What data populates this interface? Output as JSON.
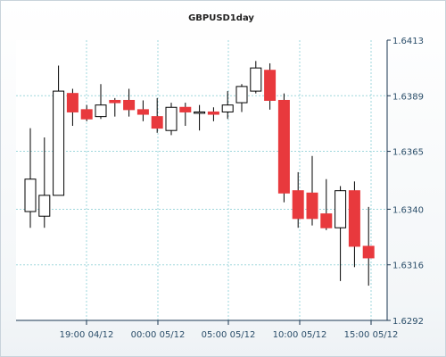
{
  "chart_data": {
    "type": "candlestick",
    "title": "GBPUSD1day",
    "ylim": [
      1.6292,
      1.6413
    ],
    "y_ticks": [
      "1.6413",
      "1.6389",
      "1.6365",
      "1.6340",
      "1.6316",
      "1.6292"
    ],
    "x_ticks": [
      "19:00 04/12",
      "00:00 05/12",
      "05:00 05/12",
      "10:00 05/12",
      "15:00 05/12"
    ],
    "grid": true,
    "colors": {
      "up": "#ffffff",
      "down": "#e8393d",
      "outline": "#000000",
      "grid": "#9fd7dc",
      "axis": "#1a3550"
    },
    "candles": [
      {
        "open": 1.6339,
        "high": 1.6375,
        "low": 1.6332,
        "close": 1.6353
      },
      {
        "open": 1.6337,
        "high": 1.6371,
        "low": 1.6332,
        "close": 1.6346
      },
      {
        "open": 1.6346,
        "high": 1.6402,
        "low": 1.6346,
        "close": 1.6391
      },
      {
        "open": 1.639,
        "high": 1.6392,
        "low": 1.6376,
        "close": 1.6382
      },
      {
        "open": 1.6383,
        "high": 1.6385,
        "low": 1.6378,
        "close": 1.6379
      },
      {
        "open": 1.638,
        "high": 1.6394,
        "low": 1.6379,
        "close": 1.6385
      },
      {
        "open": 1.6387,
        "high": 1.6388,
        "low": 1.638,
        "close": 1.6386
      },
      {
        "open": 1.6387,
        "high": 1.6392,
        "low": 1.638,
        "close": 1.6383
      },
      {
        "open": 1.6383,
        "high": 1.6387,
        "low": 1.6378,
        "close": 1.6381
      },
      {
        "open": 1.638,
        "high": 1.6388,
        "low": 1.6373,
        "close": 1.6375
      },
      {
        "open": 1.6374,
        "high": 1.6386,
        "low": 1.6372,
        "close": 1.6384
      },
      {
        "open": 1.6384,
        "high": 1.6386,
        "low": 1.6376,
        "close": 1.6382
      },
      {
        "open": 1.6382,
        "high": 1.6385,
        "low": 1.6374,
        "close": 1.6382
      },
      {
        "open": 1.6382,
        "high": 1.6384,
        "low": 1.6378,
        "close": 1.6381
      },
      {
        "open": 1.6382,
        "high": 1.6391,
        "low": 1.6379,
        "close": 1.6385
      },
      {
        "open": 1.6386,
        "high": 1.6394,
        "low": 1.6382,
        "close": 1.6393
      },
      {
        "open": 1.6391,
        "high": 1.6404,
        "low": 1.639,
        "close": 1.6401
      },
      {
        "open": 1.64,
        "high": 1.6403,
        "low": 1.6383,
        "close": 1.6387
      },
      {
        "open": 1.6387,
        "high": 1.639,
        "low": 1.6343,
        "close": 1.6347
      },
      {
        "open": 1.6348,
        "high": 1.6356,
        "low": 1.6332,
        "close": 1.6336
      },
      {
        "open": 1.6347,
        "high": 1.6363,
        "low": 1.6333,
        "close": 1.6336
      },
      {
        "open": 1.6338,
        "high": 1.6353,
        "low": 1.6331,
        "close": 1.6332
      },
      {
        "open": 1.6332,
        "high": 1.635,
        "low": 1.6309,
        "close": 1.6348
      },
      {
        "open": 1.6348,
        "high": 1.6352,
        "low": 1.6315,
        "close": 1.6324
      },
      {
        "open": 1.6324,
        "high": 1.6341,
        "low": 1.6307,
        "close": 1.6319
      }
    ]
  }
}
